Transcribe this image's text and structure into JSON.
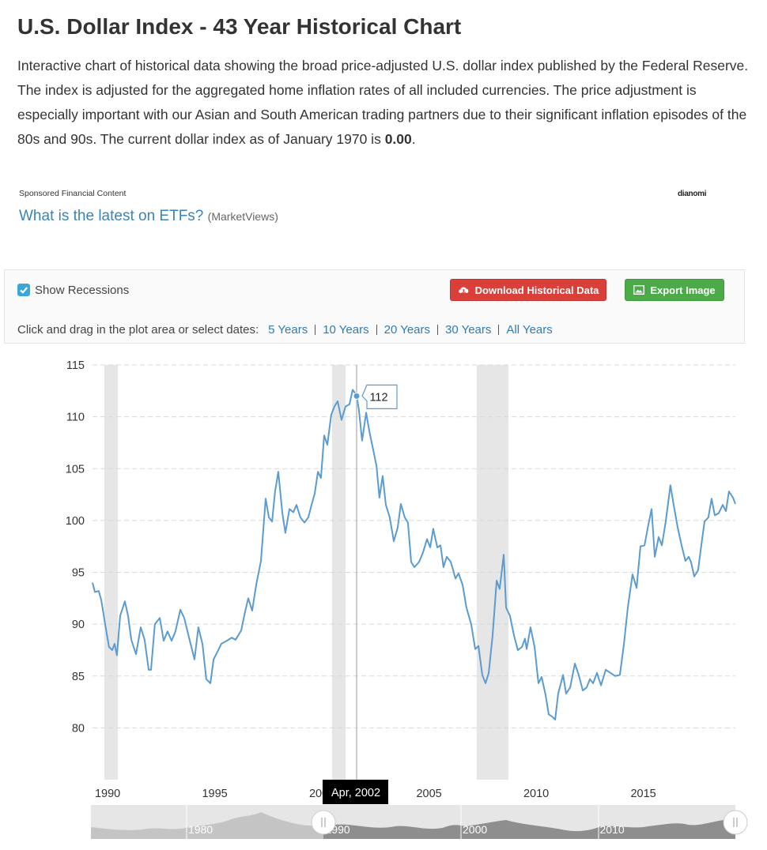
{
  "header": {
    "title": "U.S. Dollar Index - 43 Year Historical Chart",
    "description": {
      "text": "Interactive chart of historical data showing the broad price-adjusted U.S. dollar index published by the Federal Reserve. The index is adjusted for the aggregated home inflation rates of all included currencies. The price adjustment is especially important with our Asian and South American trading partners due to their significant inflation episodes of the 80s and 90s. The current dollar index as of January 1970 is",
      "value": "0.00",
      "end": "."
    }
  },
  "sponsored": {
    "label": "Sponsored Financial Content",
    "link": "What is the latest on ETFs?",
    "source": "(MarketViews)",
    "brand": "dianomi"
  },
  "controls": {
    "show_recessions": "Show Recessions",
    "download": "Download Historical Data",
    "export": "Export Image",
    "range_prompt": "Click and drag in the plot area or select dates:",
    "ranges": [
      "5 Years",
      "10 Years",
      "20 Years",
      "30 Years",
      "All Years"
    ]
  },
  "chart_data": {
    "type": "line",
    "color": "#5b9bd0",
    "grid": true,
    "x": [
      1989.89,
      1990.0,
      1990.18,
      1990.3,
      1990.48,
      1990.66,
      1990.81,
      1990.92,
      1991.03,
      1991.18,
      1991.4,
      1991.55,
      1991.7,
      1991.92,
      1992.14,
      1992.32,
      1992.51,
      1992.62,
      1992.8,
      1993.03,
      1993.21,
      1993.39,
      1993.58,
      1993.76,
      1993.99,
      1994.17,
      1994.43,
      1994.65,
      1994.83,
      1995.02,
      1995.2,
      1995.39,
      1995.54,
      1995.76,
      1995.9,
      1996.16,
      1996.38,
      1996.57,
      1996.83,
      1997.01,
      1997.16,
      1997.34,
      1997.53,
      1997.75,
      1997.97,
      1998.12,
      1998.27,
      1998.41,
      1998.56,
      1998.75,
      1998.89,
      1999.08,
      1999.26,
      1999.41,
      1999.59,
      1999.78,
      1999.96,
      2000.11,
      2000.26,
      2000.41,
      2000.55,
      2000.7,
      2000.85,
      2001.03,
      2001.18,
      2001.33,
      2001.51,
      2001.7,
      2001.88,
      2002.03,
      2002.21,
      2002.32,
      2002.47,
      2002.66,
      2002.8,
      2002.95,
      2003.14,
      2003.28,
      2003.43,
      2003.58,
      2003.76,
      2003.95,
      2004.13,
      2004.28,
      2004.46,
      2004.61,
      2004.76,
      2004.91,
      2005.13,
      2005.31,
      2005.5,
      2005.65,
      2005.79,
      2005.98,
      2006.13,
      2006.27,
      2006.42,
      2006.61,
      2006.83,
      2006.97,
      2007.16,
      2007.34,
      2007.56,
      2007.75,
      2007.9,
      2008.08,
      2008.23,
      2008.38,
      2008.56,
      2008.75,
      2008.89,
      2009.08,
      2009.19,
      2009.37,
      2009.56,
      2009.74,
      2009.93,
      2010.07,
      2010.15,
      2010.33,
      2010.52,
      2010.7,
      2010.85,
      2011.03,
      2011.18,
      2011.33,
      2011.48,
      2011.62,
      2011.85,
      2011.99,
      2012.18,
      2012.4,
      2012.58,
      2012.77,
      2012.95,
      2013.1,
      2013.25,
      2013.43,
      2013.62,
      2013.84,
      2014.06,
      2014.28,
      2014.5,
      2014.69,
      2014.87,
      2015.09,
      2015.28,
      2015.46,
      2015.65,
      2015.83,
      2015.98,
      2016.13,
      2016.31,
      2016.46,
      2016.64,
      2016.86,
      2017.01,
      2017.2,
      2017.38,
      2017.56,
      2017.71,
      2017.82,
      2017.97,
      2018.15,
      2018.3,
      2018.45,
      2018.63,
      2018.78,
      2018.93,
      2019.11,
      2019.3,
      2019.45,
      2019.59,
      2019.78,
      2019.89
    ],
    "values": [
      94.0,
      93.1,
      93.2,
      92.3,
      90.0,
      87.8,
      87.5,
      88.1,
      87.0,
      90.8,
      92.2,
      90.8,
      88.5,
      87.1,
      89.7,
      88.5,
      85.6,
      85.6,
      90.0,
      90.6,
      88.4,
      89.3,
      88.4,
      89.3,
      91.4,
      90.6,
      88.4,
      86.6,
      89.7,
      88.1,
      84.7,
      84.3,
      86.6,
      87.5,
      88.1,
      88.4,
      88.7,
      88.5,
      89.4,
      91.2,
      92.5,
      91.3,
      93.8,
      96.1,
      102.1,
      100.3,
      99.9,
      102.8,
      104.7,
      100.7,
      98.8,
      101.1,
      100.8,
      101.5,
      100.3,
      99.8,
      100.3,
      101.5,
      102.6,
      104.7,
      104.1,
      108.2,
      107.3,
      110.2,
      111.0,
      111.5,
      109.7,
      111.0,
      111.2,
      112.6,
      112.1,
      110.7,
      107.7,
      110.4,
      108.7,
      107.2,
      105.3,
      102.2,
      104.3,
      101.5,
      100.3,
      98.0,
      99.3,
      101.6,
      100.3,
      99.8,
      96.0,
      95.5,
      96.0,
      96.9,
      98.2,
      97.4,
      99.2,
      97.4,
      97.6,
      95.5,
      96.5,
      96.0,
      94.4,
      94.9,
      93.8,
      91.6,
      90.0,
      87.6,
      87.9,
      85.1,
      84.3,
      85.3,
      88.9,
      94.2,
      93.4,
      96.7,
      91.6,
      90.8,
      88.9,
      87.5,
      87.8,
      88.6,
      87.6,
      89.7,
      87.8,
      84.3,
      84.9,
      83.2,
      81.3,
      81.1,
      80.8,
      83.3,
      85.1,
      83.3,
      83.9,
      86.2,
      85.1,
      83.6,
      83.9,
      84.7,
      84.3,
      85.3,
      84.1,
      85.6,
      85.3,
      85.0,
      85.1,
      88.1,
      91.6,
      94.8,
      93.5,
      97.5,
      97.6,
      99.6,
      101.1,
      96.5,
      98.4,
      97.6,
      99.9,
      103.4,
      101.5,
      99.3,
      97.6,
      96.1,
      96.5,
      96.0,
      94.6,
      95.2,
      97.6,
      99.9,
      100.3,
      102.1,
      100.5,
      100.7,
      101.5,
      100.9,
      102.8,
      102.2,
      101.6
    ],
    "xlim": [
      1989.89,
      2019.89
    ],
    "xticks": [
      1990,
      1995,
      2000,
      2005,
      2010,
      2015
    ],
    "ylim": [
      75,
      115
    ],
    "yticks": [
      80,
      85,
      90,
      95,
      100,
      105,
      110,
      115
    ],
    "recessions": [
      [
        1990.44,
        1991.07
      ],
      [
        2001.07,
        2001.7
      ],
      [
        2007.82,
        2009.3
      ]
    ],
    "tooltip": {
      "date": "Apr, 2002",
      "value": 112
    },
    "navigator_ticks": [
      1980,
      1990,
      2000,
      2010
    ]
  }
}
